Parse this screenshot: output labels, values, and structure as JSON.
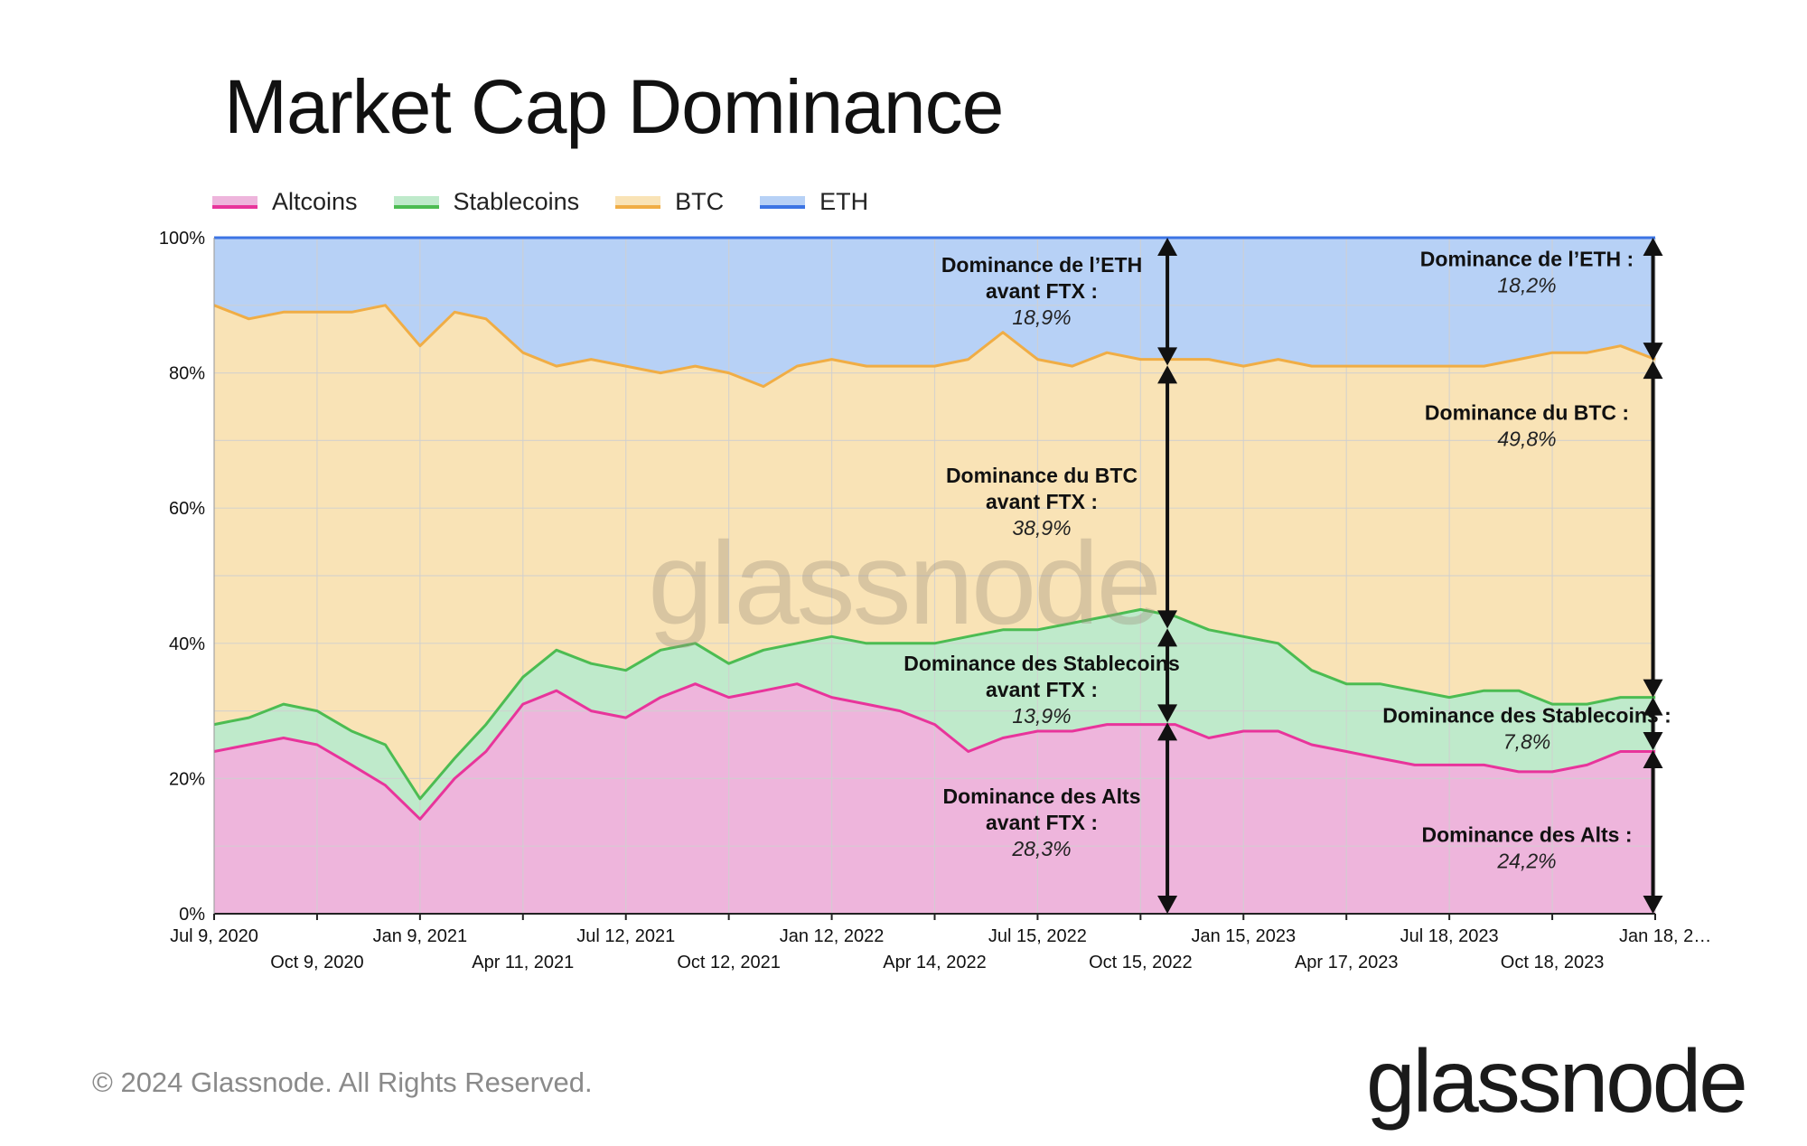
{
  "header": {
    "title": "Market Cap Dominance"
  },
  "footer": {
    "copyright": "© 2024 Glassnode. All Rights Reserved.",
    "brand": "glassnode"
  },
  "watermark": "glassnode",
  "colors": {
    "altcoins_line": "#e8349b",
    "altcoins_fill": "#eeb5dc",
    "stablecoins_line": "#4cbc52",
    "stablecoins_fill": "#bfeacb",
    "btc_line": "#f0ad45",
    "btc_fill": "#f9e3b6",
    "eth_line": "#3c74e4",
    "eth_fill": "#b7d1f6",
    "grid": "#d0d0d0",
    "arrow": "#111111"
  },
  "chart_data": {
    "type": "area",
    "stacked": true,
    "title": "Market Cap Dominance",
    "xlabel": "",
    "ylabel": "",
    "ylim": [
      0,
      100
    ],
    "yticks": [
      0,
      20,
      40,
      60,
      80,
      100
    ],
    "ytick_labels": [
      "0%",
      "20%",
      "40%",
      "60%",
      "80%",
      "100%"
    ],
    "x_start": "2020-07-09",
    "x_end": "2024-01-18",
    "xticks_row1": [
      {
        "date": "2020-07-09",
        "label": "Jul 9, 2020"
      },
      {
        "date": "2021-01-09",
        "label": "Jan 9, 2021"
      },
      {
        "date": "2021-07-12",
        "label": "Jul 12, 2021"
      },
      {
        "date": "2022-01-12",
        "label": "Jan 12, 2022"
      },
      {
        "date": "2022-07-15",
        "label": "Jul 15, 2022"
      },
      {
        "date": "2023-01-15",
        "label": "Jan 15, 2023"
      },
      {
        "date": "2023-07-18",
        "label": "Jul 18, 2023"
      },
      {
        "date": "2024-01-18",
        "label": "Jan 18, 2…"
      }
    ],
    "xticks_row2": [
      {
        "date": "2020-10-09",
        "label": "Oct 9, 2020"
      },
      {
        "date": "2021-04-11",
        "label": "Apr 11, 2021"
      },
      {
        "date": "2021-10-12",
        "label": "Oct 12, 2021"
      },
      {
        "date": "2022-04-14",
        "label": "Apr 14, 2022"
      },
      {
        "date": "2022-10-15",
        "label": "Oct 15, 2022"
      },
      {
        "date": "2023-04-17",
        "label": "Apr 17, 2023"
      },
      {
        "date": "2023-10-18",
        "label": "Oct 18, 2023"
      }
    ],
    "legend": [
      "Altcoins",
      "Stablecoins",
      "BTC",
      "ETH"
    ],
    "legend_position": "top-left",
    "series_dates": [
      "2020-07-09",
      "2020-08-09",
      "2020-09-09",
      "2020-10-09",
      "2020-11-09",
      "2020-12-09",
      "2021-01-09",
      "2021-02-09",
      "2021-03-09",
      "2021-04-11",
      "2021-05-11",
      "2021-06-11",
      "2021-07-12",
      "2021-08-12",
      "2021-09-12",
      "2021-10-12",
      "2021-11-12",
      "2021-12-12",
      "2022-01-12",
      "2022-02-12",
      "2022-03-14",
      "2022-04-14",
      "2022-05-14",
      "2022-06-14",
      "2022-07-15",
      "2022-08-15",
      "2022-09-15",
      "2022-10-15",
      "2022-11-15",
      "2022-12-15",
      "2023-01-15",
      "2023-02-15",
      "2023-03-17",
      "2023-04-17",
      "2023-05-17",
      "2023-06-17",
      "2023-07-18",
      "2023-08-18",
      "2023-09-18",
      "2023-10-18",
      "2023-11-18",
      "2023-12-18",
      "2024-01-18"
    ],
    "series": [
      {
        "name": "Altcoins",
        "values": [
          24,
          25,
          26,
          25,
          22,
          19,
          14,
          20,
          24,
          31,
          33,
          30,
          29,
          32,
          34,
          32,
          33,
          34,
          32,
          31,
          30,
          28,
          24,
          26,
          27,
          27,
          28,
          28,
          28,
          26,
          27,
          27,
          25,
          24,
          23,
          22,
          22,
          22,
          21,
          21,
          22,
          24,
          24
        ]
      },
      {
        "name": "Stablecoins cumulative",
        "values": [
          28,
          29,
          31,
          30,
          27,
          25,
          17,
          23,
          28,
          35,
          39,
          37,
          36,
          39,
          40,
          37,
          39,
          40,
          41,
          40,
          40,
          40,
          41,
          42,
          42,
          43,
          44,
          45,
          44,
          42,
          41,
          40,
          36,
          34,
          34,
          33,
          32,
          33,
          33,
          31,
          31,
          32,
          32
        ]
      },
      {
        "name": "BTC cumulative",
        "values": [
          90,
          88,
          89,
          89,
          89,
          90,
          84,
          89,
          88,
          83,
          81,
          82,
          81,
          80,
          81,
          80,
          78,
          81,
          82,
          81,
          81,
          81,
          82,
          86,
          82,
          81,
          83,
          82,
          82,
          82,
          81,
          82,
          81,
          81,
          81,
          81,
          81,
          81,
          82,
          83,
          83,
          84,
          82
        ]
      }
    ],
    "annotations": [
      {
        "id": "eth-before-ftx",
        "date": "2022-11-08",
        "from": 100,
        "to": 81.1,
        "lines": [
          "Dominance de l’ETH",
          "avant FTX :"
        ],
        "value": "18,9%"
      },
      {
        "id": "btc-before-ftx",
        "date": "2022-11-08",
        "from": 81.1,
        "to": 42.2,
        "lines": [
          "Dominance du BTC",
          "avant FTX :"
        ],
        "value": "38,9%"
      },
      {
        "id": "stable-before-ftx",
        "date": "2022-11-08",
        "from": 42.2,
        "to": 28.3,
        "lines": [
          "Dominance des Stablecoins",
          "avant FTX :"
        ],
        "value": "13,9%"
      },
      {
        "id": "alts-before-ftx",
        "date": "2022-11-08",
        "from": 28.3,
        "to": 0,
        "lines": [
          "Dominance des Alts",
          "avant FTX :"
        ],
        "value": "28,3%"
      },
      {
        "id": "eth-now",
        "date": "2024-01-16",
        "from": 100,
        "to": 81.8,
        "lines": [
          "Dominance de l’ETH :"
        ],
        "value": "18,2%"
      },
      {
        "id": "btc-now",
        "date": "2024-01-16",
        "from": 81.8,
        "to": 32.0,
        "lines": [
          "Dominance du BTC :"
        ],
        "value": "49,8%"
      },
      {
        "id": "stable-now",
        "date": "2024-01-16",
        "from": 32.0,
        "to": 24.2,
        "lines": [
          "Dominance des Stablecoins :"
        ],
        "value": "7,8%"
      },
      {
        "id": "alts-now",
        "date": "2024-01-16",
        "from": 24.2,
        "to": 0,
        "lines": [
          "Dominance des Alts :"
        ],
        "value": "24,2%"
      }
    ]
  }
}
